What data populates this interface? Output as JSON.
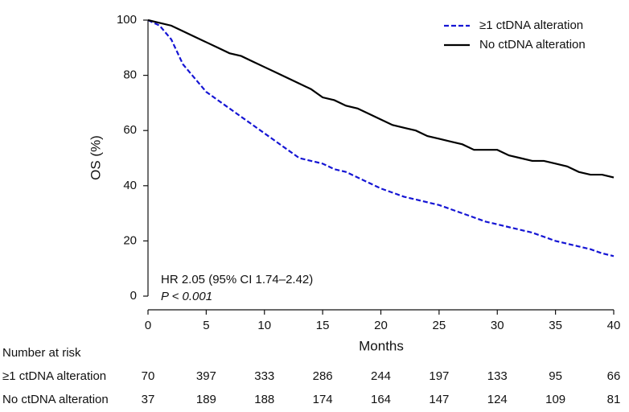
{
  "chart_data": {
    "type": "line",
    "x_label": "Months",
    "y_label": "OS (%)",
    "xlim": [
      0,
      40
    ],
    "xticks": [
      0,
      5,
      10,
      15,
      20,
      25,
      30,
      35,
      40
    ],
    "ylim": [
      0,
      100
    ],
    "yticks": [
      0,
      20,
      40,
      60,
      80,
      100
    ],
    "legend": "upper right",
    "annotations": [
      "HR 2.05 (95% CI 1.74–2.42)",
      "P < 0.001"
    ],
    "x": [
      0,
      1,
      2,
      3,
      4,
      5,
      6,
      7,
      8,
      9,
      10,
      11,
      12,
      13,
      14,
      15,
      16,
      17,
      18,
      19,
      20,
      21,
      22,
      23,
      24,
      25,
      26,
      27,
      28,
      29,
      30,
      31,
      32,
      33,
      34,
      35,
      36,
      37,
      38,
      39,
      40
    ],
    "series": [
      {
        "name": "≥1 ctDNA alteration",
        "color": "#1515d4",
        "dashed": true,
        "values": [
          100,
          98,
          93,
          84,
          79,
          74,
          71,
          68,
          65,
          62,
          59,
          56,
          53,
          50,
          49,
          48,
          46,
          45,
          43,
          41,
          39,
          37.5,
          36,
          35,
          34,
          33,
          31.5,
          30,
          28.5,
          27,
          26,
          25,
          24,
          23,
          21.5,
          20,
          19,
          18,
          17,
          15.5,
          14.5
        ]
      },
      {
        "name": "No ctDNA alteration",
        "color": "#000000",
        "dashed": false,
        "values": [
          100,
          99,
          98,
          96,
          94,
          92,
          90,
          88,
          87,
          85,
          83,
          81,
          79,
          77,
          75,
          72,
          71,
          69,
          68,
          66,
          64,
          62,
          61,
          60,
          58,
          57,
          56,
          55,
          53,
          53,
          53,
          51,
          50,
          49,
          49,
          48,
          47,
          45,
          44,
          44,
          43
        ]
      }
    ],
    "risk_table": {
      "title": "Number at risk",
      "rows": [
        {
          "name": "≥1 ctDNA alteration",
          "values": [
            70,
            397,
            333,
            286,
            244,
            197,
            133,
            95,
            66
          ]
        },
        {
          "name": "No ctDNA alteration",
          "values": [
            37,
            189,
            188,
            174,
            164,
            147,
            124,
            109,
            81
          ]
        }
      ]
    }
  }
}
